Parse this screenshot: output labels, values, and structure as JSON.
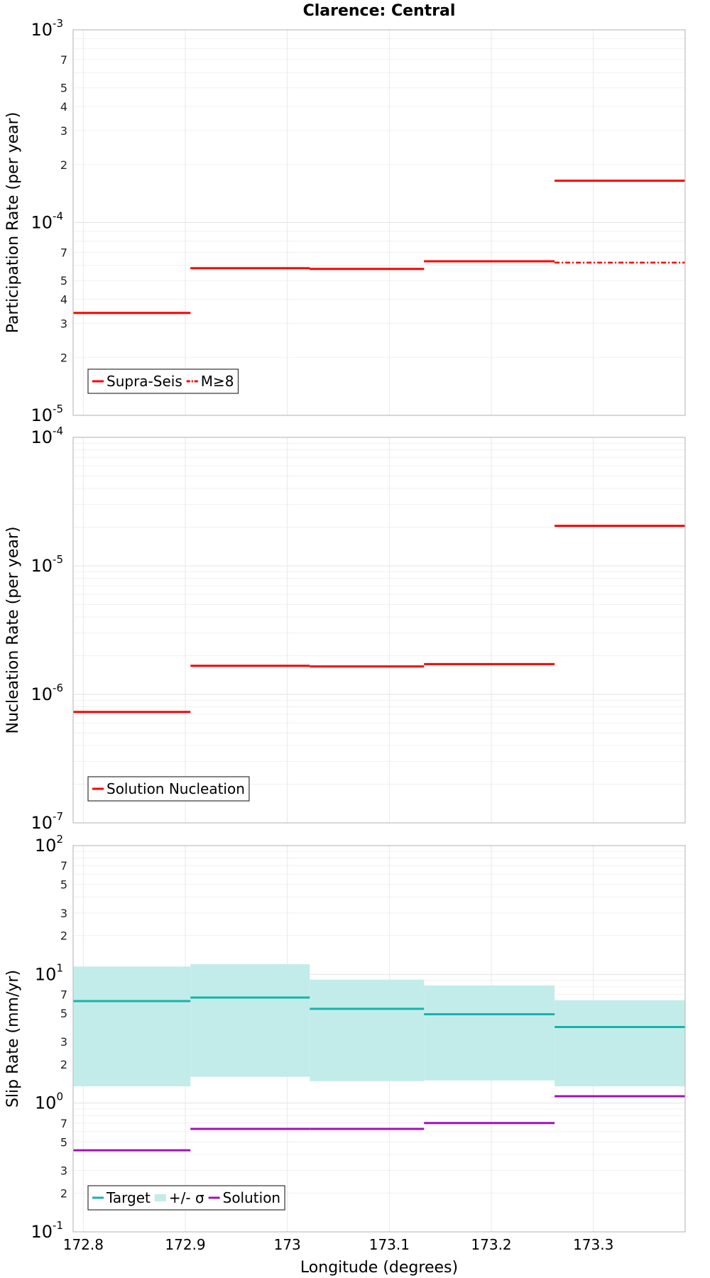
{
  "chart_data": {
    "title": "Clarence: Central",
    "xlabel": "Longitude (degrees)",
    "xlim": [
      172.79,
      173.39
    ],
    "xticks": [
      "172.8",
      "172.9",
      "173",
      "173.1",
      "173.2",
      "173.3"
    ],
    "xtick_values": [
      172.8,
      172.9,
      173.0,
      173.1,
      173.2,
      173.3
    ],
    "segment_edges": [
      172.79,
      172.905,
      173.022,
      173.134,
      173.262,
      173.39
    ],
    "panels": [
      {
        "type": "line",
        "yscale": "log",
        "ylabel": "Participation Rate (per year)",
        "ylim": [
          1e-05,
          0.001
        ],
        "major_labels": [
          {
            "base": "10",
            "exp": "-5"
          },
          {
            "base": "10",
            "exp": "-4"
          },
          {
            "base": "10",
            "exp": "-3"
          }
        ],
        "minor_labels": [
          "2",
          "3",
          "4",
          "5",
          "7"
        ],
        "legend": {
          "position": "bottom-left",
          "entries": [
            "Supra-Seis",
            "M≥8"
          ]
        },
        "series": [
          {
            "name": "Supra-Seis",
            "color": "#ff0000",
            "style": "solid",
            "values": [
              3.4e-05,
              5.8e-05,
              5.75e-05,
              6.3e-05,
              0.000165
            ]
          },
          {
            "name": "M≥8",
            "color": "#ff0000",
            "style": "dashdot",
            "values": [
              3.4e-05,
              5.8e-05,
              5.75e-05,
              6.3e-05,
              6.2e-05
            ]
          }
        ]
      },
      {
        "type": "line",
        "yscale": "log",
        "ylabel": "Nucleation Rate (per year)",
        "ylim": [
          1e-07,
          0.0001
        ],
        "major_labels": [
          {
            "base": "10",
            "exp": "-7"
          },
          {
            "base": "10",
            "exp": "-6"
          },
          {
            "base": "10",
            "exp": "-5"
          },
          {
            "base": "10",
            "exp": "-4"
          }
        ],
        "minor_labels": [],
        "legend": {
          "position": "bottom-left",
          "entries": [
            "Solution Nucleation"
          ]
        },
        "series": [
          {
            "name": "Solution Nucleation",
            "color": "#ff0000",
            "style": "solid",
            "values": [
              7.3e-07,
              1.67e-06,
              1.65e-06,
              1.72e-06,
              2.05e-05
            ]
          }
        ]
      },
      {
        "type": "area",
        "yscale": "log",
        "ylabel": "Slip Rate (mm/yr)",
        "ylim": [
          0.1,
          100
        ],
        "major_labels": [
          {
            "base": "10",
            "exp": "-1"
          },
          {
            "base": "10",
            "exp": "0"
          },
          {
            "base": "10",
            "exp": "1"
          },
          {
            "base": "10",
            "exp": "2"
          }
        ],
        "minor_labels": [
          "2",
          "3",
          "5",
          "7"
        ],
        "legend": {
          "position": "bottom-left",
          "entries": [
            "Target",
            "+/- σ",
            "Solution"
          ]
        },
        "band": {
          "name": "+/- σ",
          "color": "#c2ecea",
          "lower": [
            1.35,
            1.6,
            1.48,
            1.5,
            1.35
          ],
          "upper": [
            11.5,
            12.0,
            9.1,
            8.2,
            6.3
          ]
        },
        "series": [
          {
            "name": "Target",
            "color": "#17b3ad",
            "style": "solid",
            "values": [
              6.2,
              6.6,
              5.4,
              4.9,
              3.9
            ]
          },
          {
            "name": "Solution",
            "color": "#a012b8",
            "style": "solid",
            "values": [
              0.43,
              0.63,
              0.63,
              0.7,
              1.13
            ]
          }
        ]
      }
    ]
  }
}
